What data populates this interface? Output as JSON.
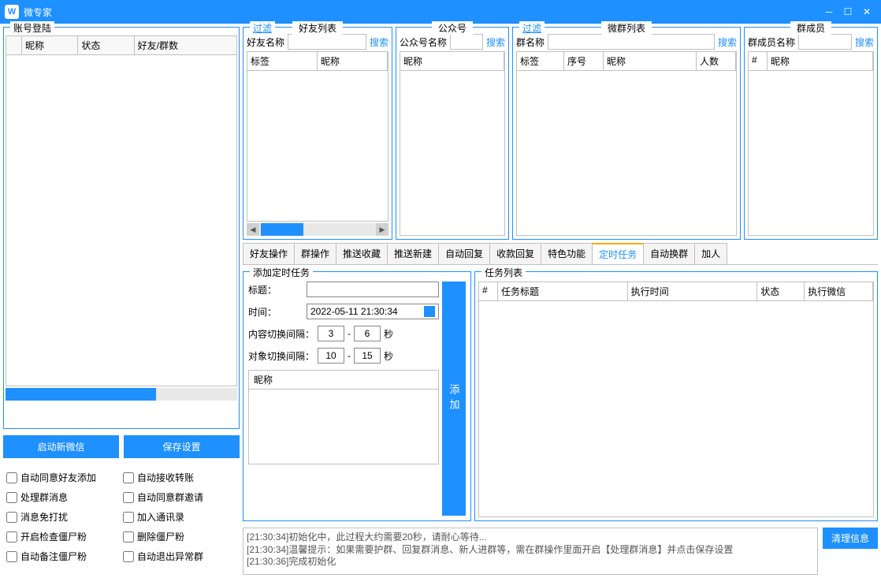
{
  "app": {
    "title": "微专家"
  },
  "account_panel": {
    "title": "账号登陆",
    "cols": [
      "昵称",
      "状态",
      "好友/群数"
    ]
  },
  "buttons": {
    "start_wechat": "启动新微信",
    "save_settings": "保存设置"
  },
  "checks": {
    "auto_accept_friend": "自动同意好友添加",
    "auto_collect_transfer": "自动接收转账",
    "handle_group_msg": "处理群消息",
    "auto_accept_group_invite": "自动同意群邀请",
    "msg_no_disturb": "消息免打扰",
    "add_contacts": "加入通讯录",
    "check_zombie": "开启检查僵尸粉",
    "delete_zombie": "删除僵尸粉",
    "auto_remark_zombie": "自动备注僵尸粉",
    "auto_leave_abnormal": "自动退出异常群"
  },
  "friend_panel": {
    "filter": "过滤",
    "title": "好友列表",
    "search_label": "好友名称",
    "search_btn": "搜索",
    "cols": [
      "标签",
      "昵称"
    ]
  },
  "public_panel": {
    "title": "公众号",
    "search_label": "公众号名称",
    "search_btn": "搜索",
    "cols": [
      "昵称"
    ]
  },
  "group_panel": {
    "filter": "过滤",
    "title": "微群列表",
    "search_label": "群名称",
    "search_btn": "搜索",
    "cols": [
      "标签",
      "序号",
      "昵称",
      "人数"
    ]
  },
  "member_panel": {
    "title": "群成员",
    "search_label": "群成员名称",
    "search_btn": "搜索",
    "cols": [
      "#",
      "昵称"
    ]
  },
  "tabs": [
    "好友操作",
    "群操作",
    "推送收藏",
    "推送新建",
    "自动回复",
    "收款回复",
    "特色功能",
    "定时任务",
    "自动换群",
    "加人"
  ],
  "active_tab": "定时任务",
  "task_form": {
    "title": "添加定时任务",
    "label_title": "标题：",
    "label_time": "时间：",
    "datetime": "2022-05-11 21:30:34",
    "label_content_interval": "内容切换间隔：",
    "content_min": "3",
    "content_max": "6",
    "label_target_interval": "对象切换间隔：",
    "target_min": "10",
    "target_max": "15",
    "unit": "秒",
    "nick_col": "昵称",
    "add_btn": "添加"
  },
  "task_list": {
    "title": "任务列表",
    "cols": [
      "#",
      "任务标题",
      "执行时间",
      "状态",
      "执行微信"
    ]
  },
  "log": {
    "lines": [
      "[21:30:34]初始化中，此过程大约需要20秒，请耐心等待...",
      "[21:30:34]温馨提示：如果需要护群、回复群消息、新人进群等，需在群操作里面开启【处理群消息】并点击保存设置",
      "[21:30:36]完成初始化"
    ],
    "clear_btn": "清理信息"
  }
}
